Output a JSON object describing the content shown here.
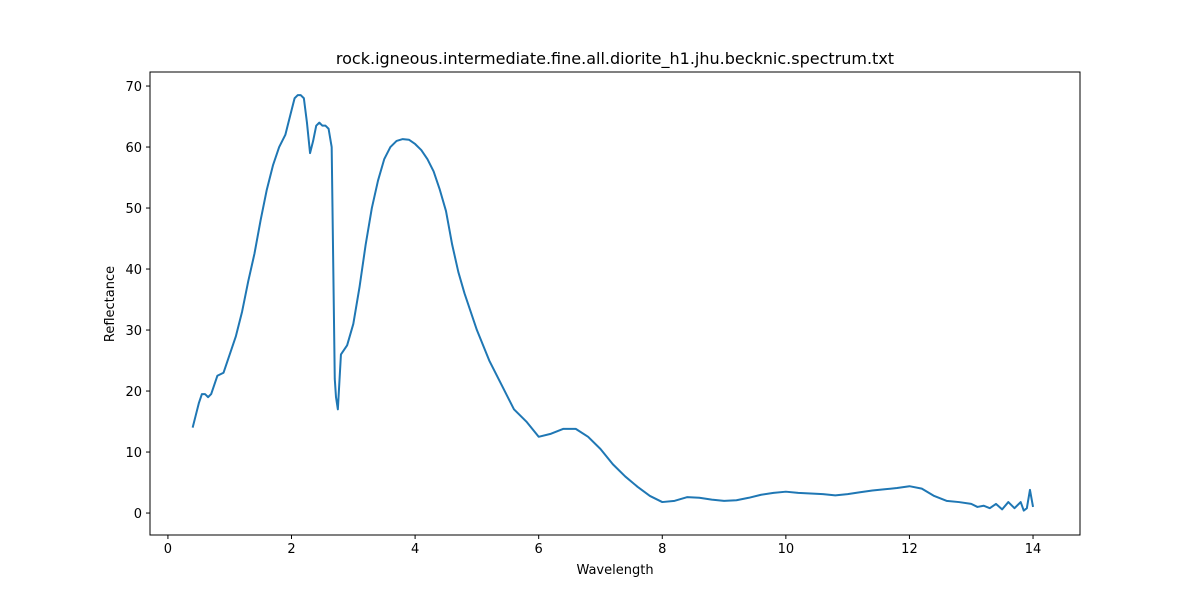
{
  "chart_data": {
    "type": "line",
    "title": "rock.igneous.intermediate.fine.all.diorite_h1.jhu.becknic.spectrum.txt",
    "x_label": "Wavelength",
    "y_label": "Reflectance",
    "x": [
      0.4,
      0.45,
      0.5,
      0.55,
      0.6,
      0.65,
      0.7,
      0.75,
      0.8,
      0.9,
      1.0,
      1.1,
      1.2,
      1.3,
      1.4,
      1.5,
      1.6,
      1.7,
      1.8,
      1.9,
      2.0,
      2.05,
      2.1,
      2.15,
      2.2,
      2.25,
      2.3,
      2.35,
      2.4,
      2.45,
      2.5,
      2.55,
      2.6,
      2.65,
      2.7,
      2.72,
      2.75,
      2.8,
      2.9,
      3.0,
      3.1,
      3.2,
      3.3,
      3.4,
      3.5,
      3.6,
      3.7,
      3.8,
      3.9,
      4.0,
      4.1,
      4.2,
      4.3,
      4.4,
      4.5,
      4.6,
      4.7,
      4.8,
      5.0,
      5.2,
      5.4,
      5.6,
      5.8,
      6.0,
      6.2,
      6.4,
      6.6,
      6.8,
      7.0,
      7.2,
      7.4,
      7.6,
      7.8,
      8.0,
      8.2,
      8.4,
      8.6,
      8.8,
      9.0,
      9.2,
      9.4,
      9.6,
      9.8,
      10.0,
      10.2,
      10.4,
      10.6,
      10.8,
      11.0,
      11.2,
      11.4,
      11.6,
      11.8,
      12.0,
      12.2,
      12.4,
      12.6,
      12.8,
      13.0,
      13.1,
      13.2,
      13.3,
      13.4,
      13.5,
      13.6,
      13.7,
      13.8,
      13.85,
      13.9,
      13.95,
      14.0
    ],
    "series": [
      {
        "color": "#1f77b4",
        "values": [
          14,
          16,
          18,
          19.5,
          19.5,
          19,
          19.5,
          21,
          22.5,
          23,
          26,
          29,
          33,
          38,
          42.5,
          48,
          53,
          57,
          60,
          62,
          66,
          68,
          68.5,
          68.5,
          68,
          64,
          59,
          61,
          63.5,
          64,
          63.5,
          63.5,
          63,
          60,
          22,
          19,
          17,
          26,
          27.5,
          31,
          37,
          44,
          50,
          54.5,
          58,
          60,
          61,
          61.3,
          61.2,
          60.5,
          59.5,
          58,
          56,
          53,
          49.5,
          44,
          39.5,
          36,
          30,
          25,
          21,
          17,
          15,
          12.5,
          13,
          13.8,
          13.8,
          12.5,
          10.5,
          8,
          6,
          4.3,
          2.8,
          1.8,
          2,
          2.6,
          2.5,
          2.2,
          2,
          2.1,
          2.5,
          3,
          3.3,
          3.5,
          3.3,
          3.2,
          3.1,
          2.9,
          3.1,
          3.4,
          3.7,
          3.9,
          4.1,
          4.4,
          4.0,
          2.8,
          2.0,
          1.8,
          1.5,
          1.0,
          1.2,
          0.8,
          1.5,
          0.6,
          1.8,
          0.8,
          1.8,
          0.4,
          0.8,
          3.8,
          1.0
        ]
      }
    ],
    "xlim": [
      -0.29,
      14.76
    ],
    "ylim": [
      -3.6,
      72.3
    ],
    "xticks": [
      0,
      2,
      4,
      6,
      8,
      10,
      12,
      14
    ],
    "yticks": [
      0,
      10,
      20,
      30,
      40,
      50,
      60,
      70
    ]
  }
}
